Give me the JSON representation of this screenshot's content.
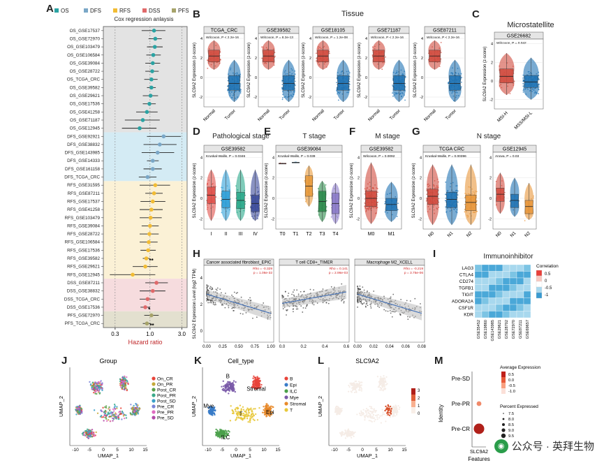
{
  "panelA": {
    "letter": "A",
    "legend": [
      {
        "label": "OS",
        "color": "#2ba3a3"
      },
      {
        "label": "DFS",
        "color": "#7aa7c7"
      },
      {
        "label": "RFS",
        "color": "#f2bc34"
      },
      {
        "label": "DSS",
        "color": "#e0696a"
      },
      {
        "label": "PFS",
        "color": "#a6a36a"
      }
    ],
    "title": "Cox regression anlaysis",
    "xlabel": "Hazard ratio",
    "ticks": [
      "0.3",
      "1.0",
      "3.0"
    ],
    "rows": [
      {
        "name": "OS_GSE17537",
        "g": "OS",
        "hr": 1.15,
        "lo": 0.75,
        "hi": 1.7,
        "sig": ""
      },
      {
        "name": "OS_GSE72970",
        "g": "OS",
        "hr": 1.2,
        "lo": 0.95,
        "hi": 1.5,
        "sig": ""
      },
      {
        "name": "OS_GSE103479",
        "g": "OS",
        "hr": 1.18,
        "lo": 0.9,
        "hi": 1.55,
        "sig": ""
      },
      {
        "name": "OS_GSE106584",
        "g": "OS",
        "hr": 1.12,
        "lo": 0.88,
        "hi": 1.45,
        "sig": ""
      },
      {
        "name": "OS_GSE39084",
        "g": "OS",
        "hr": 1.1,
        "lo": 0.85,
        "hi": 1.42,
        "sig": ""
      },
      {
        "name": "OS_GSE28722",
        "g": "OS",
        "hr": 1.08,
        "lo": 0.85,
        "hi": 1.35,
        "sig": ""
      },
      {
        "name": "OS_TCGA_CRC",
        "g": "OS",
        "hr": 1.05,
        "lo": 0.82,
        "hi": 1.3,
        "sig": ""
      },
      {
        "name": "OS_GSE39582",
        "g": "OS",
        "hr": 1.05,
        "lo": 0.9,
        "hi": 1.22,
        "sig": ""
      },
      {
        "name": "OS_GSE29621",
        "g": "OS",
        "hr": 1.02,
        "lo": 0.78,
        "hi": 1.32,
        "sig": ""
      },
      {
        "name": "OS_GSE17536",
        "g": "OS",
        "hr": 0.98,
        "lo": 0.78,
        "hi": 1.22,
        "sig": ""
      },
      {
        "name": "OS_GSE41258",
        "g": "OS",
        "hr": 0.9,
        "lo": 0.62,
        "hi": 1.3,
        "sig": ""
      },
      {
        "name": "OS_GSE71187",
        "g": "OS",
        "hr": 0.78,
        "lo": 0.42,
        "hi": 1.4,
        "sig": ""
      },
      {
        "name": "OS_GSE12945",
        "g": "OS",
        "hr": 0.7,
        "lo": 0.38,
        "hi": 1.25,
        "sig": ""
      },
      {
        "name": "DFS_GSE92921",
        "g": "DFS",
        "hr": 1.6,
        "lo": 0.9,
        "hi": 2.9,
        "sig": ""
      },
      {
        "name": "DFS_GSE38832",
        "g": "DFS",
        "hr": 1.4,
        "lo": 0.8,
        "hi": 2.5,
        "sig": ""
      },
      {
        "name": "DFS_GSE143985",
        "g": "DFS",
        "hr": 1.3,
        "lo": 0.75,
        "hi": 2.3,
        "sig": ""
      },
      {
        "name": "DFS_GSE14333",
        "g": "DFS",
        "hr": 1.1,
        "lo": 0.9,
        "hi": 1.35,
        "sig": ""
      },
      {
        "name": "DFS_GSE161158",
        "g": "DFS",
        "hr": 1.1,
        "lo": 0.8,
        "hi": 1.5,
        "sig": ""
      },
      {
        "name": "DFS_TCGA_CRC",
        "g": "DFS",
        "hr": 0.92,
        "lo": 0.68,
        "hi": 1.25,
        "sig": ""
      },
      {
        "name": "RFS_GSE31595",
        "g": "RFS",
        "hr": 1.2,
        "lo": 0.7,
        "hi": 2.0,
        "sig": ""
      },
      {
        "name": "RFS_GSE87211",
        "g": "RFS",
        "hr": 1.15,
        "lo": 0.85,
        "hi": 1.55,
        "sig": ""
      },
      {
        "name": "RFS_GSE17537",
        "g": "RFS",
        "hr": 1.1,
        "lo": 0.72,
        "hi": 1.7,
        "sig": ""
      },
      {
        "name": "RFS_GSE41258",
        "g": "RFS",
        "hr": 1.05,
        "lo": 0.7,
        "hi": 1.55,
        "sig": ""
      },
      {
        "name": "RFS_GSE103479",
        "g": "RFS",
        "hr": 1.02,
        "lo": 0.7,
        "hi": 1.5,
        "sig": ""
      },
      {
        "name": "RFS_GSE39084",
        "g": "RFS",
        "hr": 1.0,
        "lo": 0.75,
        "hi": 1.35,
        "sig": ""
      },
      {
        "name": "RFS_GSE28722",
        "g": "RFS",
        "hr": 0.98,
        "lo": 0.7,
        "hi": 1.35,
        "sig": ""
      },
      {
        "name": "RFS_GSE106584",
        "g": "RFS",
        "hr": 0.96,
        "lo": 0.7,
        "hi": 1.3,
        "sig": ""
      },
      {
        "name": "RFS_GSE17536",
        "g": "RFS",
        "hr": 0.94,
        "lo": 0.72,
        "hi": 1.22,
        "sig": ""
      },
      {
        "name": "RFS_GSE39582",
        "g": "RFS",
        "hr": 0.88,
        "lo": 0.78,
        "hi": 0.99,
        "sig": "**"
      },
      {
        "name": "RFS_GSE29621",
        "g": "RFS",
        "hr": 0.85,
        "lo": 0.55,
        "hi": 1.3,
        "sig": ""
      },
      {
        "name": "RFS_GSE12945",
        "g": "RFS",
        "hr": 0.55,
        "lo": 0.25,
        "hi": 1.2,
        "sig": ""
      },
      {
        "name": "DSS_GSE87211",
        "g": "DSS",
        "hr": 1.25,
        "lo": 0.85,
        "hi": 1.85,
        "sig": ""
      },
      {
        "name": "DSS_GSE38832",
        "g": "DSS",
        "hr": 1.1,
        "lo": 0.7,
        "hi": 1.7,
        "sig": ""
      },
      {
        "name": "DSS_TCGA_CRC",
        "g": "DSS",
        "hr": 0.92,
        "lo": 0.7,
        "hi": 1.2,
        "sig": ""
      },
      {
        "name": "DSS_GSE17536",
        "g": "DSS",
        "hr": 0.85,
        "lo": 0.72,
        "hi": 1.0,
        "sig": "*"
      },
      {
        "name": "PFS_GSE72970",
        "g": "PFS",
        "hr": 1.05,
        "lo": 0.82,
        "hi": 1.35,
        "sig": ""
      },
      {
        "name": "PFS_TCGA_CRC",
        "g": "PFS",
        "hr": 0.9,
        "lo": 0.78,
        "hi": 1.02,
        "sig": "**"
      }
    ],
    "bands": {
      "OS": "#e3e3e3",
      "DFS": "#d4ebf4",
      "RFS": "#fbf1d6",
      "DSS": "#f6dcde",
      "PFS": "#e3e0cf"
    }
  },
  "panelB": {
    "letter": "B",
    "title": "Tissue",
    "ylabel": "SLC9A2 Expression (z-score)",
    "groups": [
      "Normal",
      "Tumor"
    ],
    "datasets": [
      {
        "name": "TCGA_CRC",
        "stat": "Wilcoxon, P < 2.2e-16"
      },
      {
        "name": "GSE39582",
        "stat": "Wilcoxon, P = 8.2e-13"
      },
      {
        "name": "GSE18105",
        "stat": "Wilcoxon, P = 1.2e-08"
      },
      {
        "name": "GSE71187",
        "stat": "Wilcoxon, P < 2.2e-16"
      },
      {
        "name": "GSE87211",
        "stat": "Wilcoxon, P < 2.2e-16"
      }
    ]
  },
  "panelC": {
    "letter": "C",
    "title": "Microstatellite",
    "dataset": "GSE26682",
    "stat": "Wilcoxon, P = 0.042",
    "groups": [
      "MSI-H",
      "MSS/MSI-L"
    ],
    "ylabel": "SLC9A2 Expression (z-score)"
  },
  "panelD": {
    "letter": "D",
    "title": "Pathological stage",
    "dataset": "GSE39582",
    "stat": "Kruskal-Wallis, P = 0.0346",
    "groups": [
      "I",
      "II",
      "III",
      "IV"
    ],
    "ylabel": "SLC9A2 Expression (z-score)"
  },
  "panelE": {
    "letter": "E",
    "title": "T stage",
    "dataset": "GSE39084",
    "stat": "Kruskal-Wallis, P = 0.039",
    "groups": [
      "T0",
      "T1",
      "T2",
      "T3",
      "T4"
    ],
    "ylabel": "SLC9A2 Expression (z-score)"
  },
  "panelF": {
    "letter": "F",
    "title": "M stage",
    "dataset": "GSE39582",
    "stat": "Wilcoxon, P = 0.0092",
    "groups": [
      "M0",
      "M1"
    ],
    "ylabel": "SLC9A2 Expression (z-score)"
  },
  "panelG": {
    "letter": "G",
    "title": "N stage",
    "datasets": [
      {
        "name": "TCGA CRC",
        "stat": "Kruskal-Wallis, P = 0.00396"
      },
      {
        "name": "GSE12945",
        "stat": "Anova, P = 0.03"
      }
    ],
    "groups": [
      "N0",
      "N1",
      "N2"
    ],
    "ylabel": "SLC9A2 Expression (z-score)"
  },
  "panelH": {
    "letter": "H",
    "ylabel": "SLC9A2 Expression Level (log2 TPM)",
    "plots": [
      {
        "title": "Cancer associated fibroblast_EPIC",
        "stat1": "Rho = -0.329",
        "stat2": "p = 1.06e-32",
        "ticks": [
          "0.00",
          "0.25",
          "0.50",
          "0.75",
          "1.00"
        ]
      },
      {
        "title": "T cell CD8+_TIMER",
        "stat1": "Rho = 0.141",
        "stat2": "p = 2.96e-03",
        "ticks": [
          "0.0",
          "0.2",
          "0.4",
          "0.6"
        ]
      },
      {
        "title": "Macrophage M2_XCELL",
        "stat1": "Rho = -0.219",
        "stat2": "p = 3.75e-06",
        "ticks": [
          "0.00",
          "0.02",
          "0.04",
          "0.06",
          "0.08"
        ]
      }
    ],
    "yticks": [
      "4",
      "2",
      "0"
    ]
  },
  "panelI": {
    "letter": "I",
    "title": "Immunoinhibitor",
    "rows": [
      "LAG3",
      "CTLA4",
      "CD274",
      "TGFB1",
      "TIGIT",
      "ADORA2A",
      "CSF1R",
      "KDR"
    ],
    "cols": [
      "GSE35452",
      "GSE19860",
      "GSE143985",
      "GSE29621",
      "GSE28702",
      "GSE72970",
      "GSE87211",
      "GSE69657"
    ],
    "legend_title": "Correlation",
    "legend_ticks": [
      "0.5",
      "0",
      "-0.5",
      "-1"
    ]
  },
  "panelJ": {
    "letter": "J",
    "title": "Group",
    "xlabel": "UMAP_1",
    "ylabel": "UMAP_2",
    "xticks": [
      "-10",
      "-5",
      "0",
      "5",
      "10",
      "15"
    ],
    "legend": [
      {
        "label": "On_CR",
        "color": "#e8443a"
      },
      {
        "label": "On_PR",
        "color": "#c4a93a"
      },
      {
        "label": "Post_CR",
        "color": "#5aa04a"
      },
      {
        "label": "Post_PR",
        "color": "#3aaa8a"
      },
      {
        "label": "Post_SD",
        "color": "#3aa0c8"
      },
      {
        "label": "Pre_CR",
        "color": "#7a84d8"
      },
      {
        "label": "Pre_PR",
        "color": "#e06ac0"
      },
      {
        "label": "Pre_SD",
        "color": "#b24aa8"
      }
    ]
  },
  "panelK": {
    "letter": "K",
    "title": "Cell_type",
    "xlabel": "UMAP_1",
    "ylabel": "UMAP_2",
    "xticks": [
      "-10",
      "-5",
      "0",
      "5",
      "10",
      "15"
    ],
    "legend": [
      {
        "label": "B",
        "color": "#e8443a"
      },
      {
        "label": "Epi",
        "color": "#3a7cc8"
      },
      {
        "label": "ILC",
        "color": "#4aa04a"
      },
      {
        "label": "Mye",
        "color": "#7a5aa8"
      },
      {
        "label": "Stromal",
        "color": "#e88a2a"
      },
      {
        "label": "T",
        "color": "#e8c83a"
      }
    ],
    "cluster_labels": [
      "B",
      "Stromal",
      "Mye",
      "T",
      "Epi",
      "ILC"
    ]
  },
  "panelL": {
    "letter": "L",
    "title": "SLC9A2",
    "xlabel": "UMAP_1",
    "ylabel": "UMAP_2",
    "xticks": [
      "-10",
      "-5",
      "0",
      "5",
      "10",
      "15"
    ],
    "scale": [
      "3",
      "2",
      "1",
      "0"
    ]
  },
  "panelM": {
    "letter": "M",
    "ylabel": "Identity",
    "xlabel": "Features",
    "feature": "SLC9A2",
    "rows": [
      {
        "name": "Pre-SD",
        "pct": 0,
        "avg": -1.0
      },
      {
        "name": "Pre-PR",
        "pct": 7.8,
        "avg": 0.2
      },
      {
        "name": "Pre-CR",
        "pct": 9.5,
        "avg": 0.95
      }
    ],
    "avg_title": "Average Expression",
    "avg_ticks": [
      "0.5",
      "0.0",
      "-0.5",
      "-1.0"
    ],
    "pct_title": "Percent Expressed",
    "pct_ticks": [
      "7.5",
      "8.0",
      "8.5",
      "9.0",
      "9.5"
    ]
  },
  "watermark": {
    "text": "公众号 · 英拜生物"
  }
}
